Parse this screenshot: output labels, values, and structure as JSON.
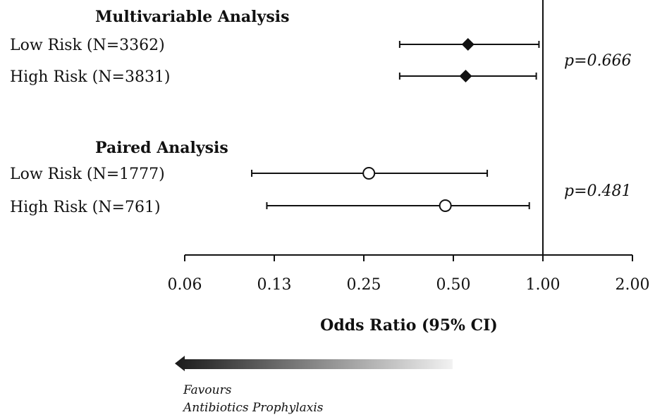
{
  "chart_data": {
    "type": "forest",
    "x_scale": "log2",
    "xlim": [
      0.0625,
      2.0
    ],
    "ticks": [
      {
        "value": 0.0625,
        "label": "0.06"
      },
      {
        "value": 0.125,
        "label": "0.13"
      },
      {
        "value": 0.25,
        "label": "0.25"
      },
      {
        "value": 0.5,
        "label": "0.50"
      },
      {
        "value": 1.0,
        "label": "1.00"
      },
      {
        "value": 2.0,
        "label": "2.00"
      }
    ],
    "reference_line": 1.0,
    "xlabel": "Odds Ratio (95% CI)",
    "groups": [
      {
        "title": "Multivariable Analysis",
        "marker": "filled-diamond",
        "p_value": "p=0.666",
        "rows": [
          {
            "label": "Low Risk (N=3362)",
            "or": 0.56,
            "ci_low": 0.33,
            "ci_high": 0.97
          },
          {
            "label": "High Risk (N=3831)",
            "or": 0.55,
            "ci_low": 0.33,
            "ci_high": 0.95
          }
        ]
      },
      {
        "title": "Paired Analysis",
        "marker": "open-circle",
        "p_value": "p=0.481",
        "rows": [
          {
            "label": "Low Risk (N=1777)",
            "or": 0.26,
            "ci_low": 0.105,
            "ci_high": 0.65
          },
          {
            "label": "High Risk (N=761)",
            "or": 0.47,
            "ci_low": 0.118,
            "ci_high": 0.9
          }
        ]
      }
    ],
    "favours": {
      "line1": "Favours",
      "line2": "Antibiotics Prophylaxis",
      "direction": "left",
      "gradient": [
        "#1a1a1a",
        "#f2f2f2"
      ]
    }
  }
}
